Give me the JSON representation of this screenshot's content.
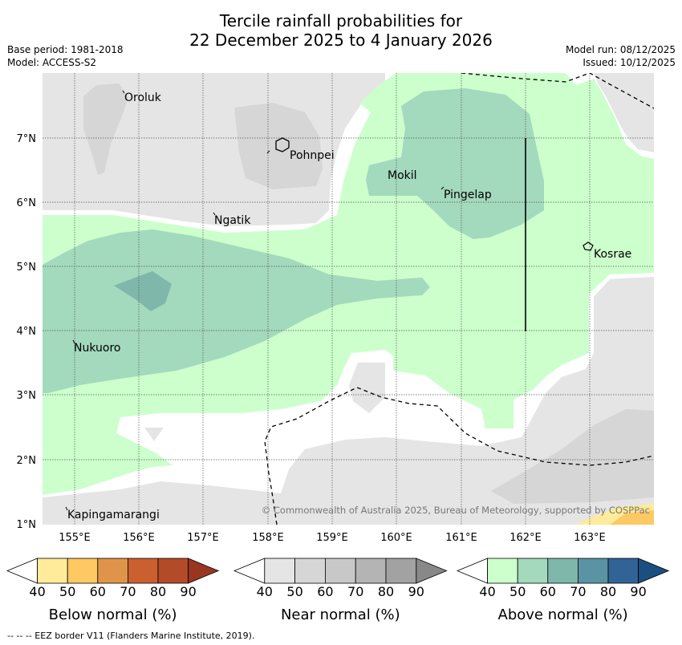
{
  "title_line1": "Tercile rainfall probabilities for",
  "title_line2": "22 December 2025 to 4 January 2026",
  "base_period": "Base period: 1981-2018",
  "model": "Model: ACCESS-S2",
  "model_run": "Model run: 08/12/2025",
  "issued": "Issued: 10/12/2025",
  "copyright": "© Commonwealth of Australia 2025, Bureau of Meteorology, supported by COSPPac",
  "footer": "--  --  -- EEZ border V11 (Flanders Marine Institute, 2019).",
  "map": {
    "lon_labels": [
      "155°E",
      "156°E",
      "157°E",
      "158°E",
      "159°E",
      "160°E",
      "161°E",
      "162°E",
      "163°E"
    ],
    "lat_labels": [
      "7°N",
      "6°N",
      "5°N",
      "4°N",
      "3°N",
      "2°N",
      "1°N"
    ],
    "places": [
      "Oroluk",
      "Pohnpei",
      "Mokil",
      "Pingelap",
      "Ngatik",
      "Kosrae",
      "Nukuoro",
      "Kapingamarangi"
    ]
  },
  "legends": [
    {
      "title": "Below normal (%)",
      "ticks": [
        "40",
        "50",
        "60",
        "70",
        "80",
        "90"
      ],
      "colors": [
        "#ffffff",
        "#ffeb99",
        "#fec862",
        "#e0944a",
        "#ca602f",
        "#b44b28",
        "#993620"
      ]
    },
    {
      "title": "Near normal (%)",
      "ticks": [
        "40",
        "50",
        "60",
        "70",
        "80",
        "90"
      ],
      "colors": [
        "#ffffff",
        "#e5e5e5",
        "#d6d6d6",
        "#c8c8c8",
        "#b4b4b4",
        "#a2a2a2",
        "#888888"
      ]
    },
    {
      "title": "Above normal (%)",
      "ticks": [
        "40",
        "50",
        "60",
        "70",
        "80",
        "90"
      ],
      "colors": [
        "#ffffff",
        "#ccffcc",
        "#a3d9bd",
        "#80b7ab",
        "#5a93a4",
        "#316397",
        "#1b4f80"
      ]
    }
  ]
}
